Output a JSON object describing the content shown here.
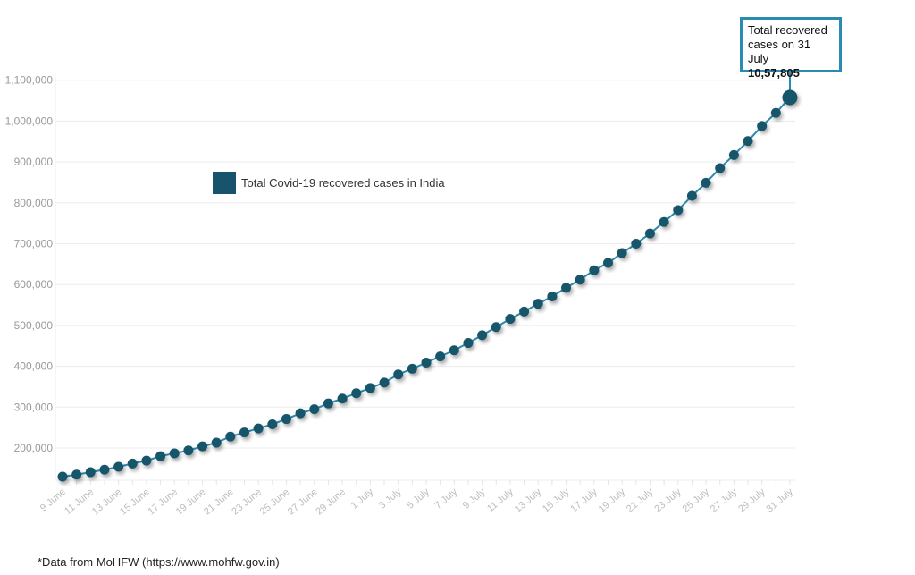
{
  "chart_data": {
    "type": "line",
    "title": "",
    "xlabel": "",
    "ylabel": "",
    "ylim": [
      120000,
      1100000
    ],
    "yticks": [
      200000,
      300000,
      400000,
      500000,
      600000,
      700000,
      800000,
      900000,
      1000000,
      1100000
    ],
    "ytick_labels": [
      "200,000",
      "300,000",
      "400,000",
      "500,000",
      "600,000",
      "700,000",
      "800,000",
      "900,000",
      "1,000,000",
      "1,100,000"
    ],
    "xtick_labels": [
      "9 June",
      "11 June",
      "13 June",
      "15 June",
      "17 June",
      "19 June",
      "21 June",
      "23 June",
      "25 June",
      "27 June",
      "29 June",
      "1 July",
      "3 July",
      "5 July",
      "7 July",
      "9 July",
      "11 July",
      "13 July",
      "15 July",
      "17 July",
      "19 July",
      "21 July",
      "23 July",
      "25 July",
      "27 July",
      "29 July",
      "31 July"
    ],
    "grid": true,
    "legend_position": "upper-left inside",
    "series": [
      {
        "name": "Total Covid-19 recovered cases in India",
        "color": "#17546b",
        "x": [
          "9 June",
          "10 June",
          "11 June",
          "12 June",
          "13 June",
          "14 June",
          "15 June",
          "16 June",
          "17 June",
          "18 June",
          "19 June",
          "20 June",
          "21 June",
          "22 June",
          "23 June",
          "24 June",
          "25 June",
          "26 June",
          "27 June",
          "28 June",
          "29 June",
          "30 June",
          "1 July",
          "2 July",
          "3 July",
          "4 July",
          "5 July",
          "6 July",
          "7 July",
          "8 July",
          "9 July",
          "10 July",
          "11 July",
          "12 July",
          "13 July",
          "14 July",
          "15 July",
          "16 July",
          "17 July",
          "18 July",
          "19 July",
          "20 July",
          "21 July",
          "22 July",
          "23 July",
          "24 July",
          "25 July",
          "26 July",
          "27 July",
          "28 July",
          "29 July",
          "30 July",
          "31 July"
        ],
        "values": [
          130000,
          135000,
          141000,
          147000,
          154000,
          162000,
          169000,
          180000,
          187000,
          194000,
          204000,
          213000,
          228000,
          238000,
          248000,
          258000,
          271000,
          285000,
          295000,
          309000,
          321000,
          334000,
          347000,
          360000,
          380000,
          394000,
          409000,
          424000,
          439000,
          457000,
          476000,
          496000,
          516000,
          534000,
          553000,
          571000,
          592000,
          612000,
          635000,
          653000,
          677000,
          700000,
          725000,
          753000,
          782000,
          817000,
          849000,
          885000,
          917000,
          951000,
          988000,
          1020000,
          1057805
        ]
      }
    ],
    "annotation": {
      "line1": "Total recovered",
      "line2": "cases on 31 July",
      "value": "10,57,805"
    }
  },
  "legend": {
    "label": "Total Covid-19 recovered cases in India"
  },
  "footnote": "*Data from MoHFW (https://www.mohfw.gov.in)"
}
